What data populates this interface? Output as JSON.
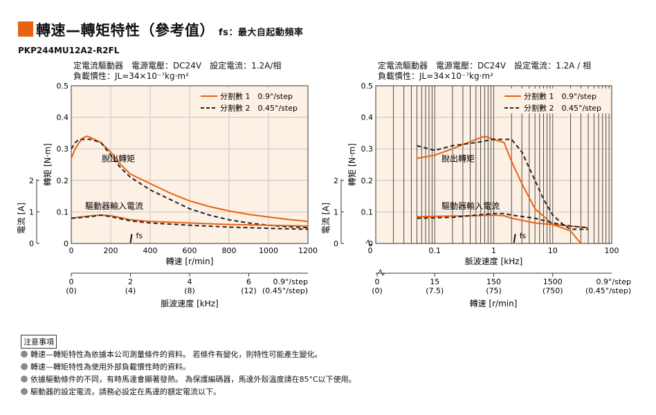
{
  "title": {
    "main": "轉速—轉矩特性（參考值）",
    "sub": "fs：最大自起動頻率"
  },
  "model": "PKP244MU12A2-R2FL",
  "conditions": {
    "line1": "定電流驅動器　電源電壓：DC24V　設定電流：1.2A/相",
    "line1_right": "定電流驅動器　電源電壓：DC24V　設定電流：1.2A / 相",
    "line2": "負載慣性：JL=34×10⁻⁷kg·m²"
  },
  "colors": {
    "accent": "#e8620f",
    "plot_bg": "#fdf0e4",
    "grid": "#bbbbbb",
    "dark": "#222222"
  },
  "chart_data": [
    {
      "type": "line",
      "xlabel": "轉速 [r/min]",
      "ylabel": "轉矩 [N·m]",
      "ylabel2": "電流 [A]",
      "xlim": [
        0,
        1200
      ],
      "ylim": [
        0,
        0.5
      ],
      "xticks": [
        "0",
        "200",
        "400",
        "600",
        "800",
        "1000",
        "1200"
      ],
      "yticks": [
        "0",
        "0.1",
        "0.2",
        "0.3",
        "0.4",
        "0.5"
      ],
      "current_ticks": [
        "0",
        "1",
        "2"
      ],
      "pulse_axis": {
        "label": "脈波速度 [kHz]",
        "ticks_full": [
          "0",
          "2",
          "4",
          "6"
        ],
        "ticks_half": [
          "(0)",
          "(4)",
          "(8)",
          "(12)"
        ],
        "end_label": "0.9°/step",
        "end_label2": "(0.45°/step)"
      },
      "annotations": {
        "pullout": "脫出轉矩",
        "current": "驅動器輸入電流",
        "fs": "fs"
      },
      "legend": {
        "placement": "top-right"
      },
      "series": [
        {
          "name": "分割數 1　0.9°/step",
          "role": "pullout",
          "style": "solid",
          "x": [
            0,
            20,
            40,
            60,
            80,
            100,
            150,
            200,
            250,
            300,
            400,
            500,
            600,
            700,
            800,
            900,
            1000,
            1100,
            1200
          ],
          "y": [
            0.27,
            0.3,
            0.32,
            0.335,
            0.34,
            0.335,
            0.32,
            0.29,
            0.25,
            0.22,
            0.19,
            0.16,
            0.135,
            0.117,
            0.103,
            0.092,
            0.084,
            0.076,
            0.07
          ]
        },
        {
          "name": "分割數 2　0.45°/step",
          "role": "pullout",
          "style": "dashed",
          "x": [
            0,
            20,
            40,
            60,
            80,
            100,
            150,
            200,
            250,
            300,
            400,
            500,
            600,
            700,
            800,
            900,
            1000,
            1100,
            1200
          ],
          "y": [
            0.3,
            0.32,
            0.33,
            0.33,
            0.33,
            0.33,
            0.32,
            0.28,
            0.24,
            0.21,
            0.17,
            0.14,
            0.11,
            0.09,
            0.075,
            0.065,
            0.058,
            0.053,
            0.05
          ]
        },
        {
          "name": "分割數 1　0.9°/step",
          "role": "current",
          "style": "solid",
          "x": [
            0,
            100,
            150,
            200,
            250,
            300,
            400,
            600,
            800,
            1000,
            1200
          ],
          "y": [
            0.08,
            0.088,
            0.09,
            0.088,
            0.082,
            0.075,
            0.07,
            0.065,
            0.06,
            0.058,
            0.055
          ]
        },
        {
          "name": "分割數 2　0.45°/step",
          "role": "current",
          "style": "dashed",
          "x": [
            0,
            100,
            150,
            200,
            250,
            300,
            400,
            600,
            800,
            1000,
            1200
          ],
          "y": [
            0.08,
            0.085,
            0.09,
            0.085,
            0.078,
            0.072,
            0.065,
            0.058,
            0.052,
            0.048,
            0.045
          ]
        }
      ],
      "fs_x": 300
    },
    {
      "type": "line",
      "log_x": true,
      "xlabel": "脈波速度 [kHz]",
      "ylabel": "轉矩 [N·m]",
      "ylabel2": "電流 [A]",
      "xlim": [
        0.01,
        100
      ],
      "ylim": [
        0,
        0.5
      ],
      "xticks": [
        "0.1",
        "1",
        "10",
        "100"
      ],
      "x0_label": "0",
      "yticks": [
        "0",
        "0.1",
        "0.2",
        "0.3",
        "0.4",
        "0.5"
      ],
      "current_ticks": [
        "0",
        "1",
        "2"
      ],
      "speed_axis": {
        "label": "轉速 [r/min]",
        "ticks_full": [
          "0",
          "15",
          "150",
          "1500"
        ],
        "ticks_half": [
          "(0)",
          "(7.5)",
          "(75)",
          "(750)"
        ],
        "end_label": "0.9°/step",
        "end_label2": "(0.45°/step)"
      },
      "annotations": {
        "pullout": "脫出轉矩",
        "current": "驅動器輸入電流",
        "fs": "fs"
      },
      "legend": {
        "placement": "top-right"
      },
      "series": [
        {
          "name": "分割數 1　0.9°/step",
          "role": "pullout",
          "style": "solid",
          "x": [
            0.05,
            0.1,
            0.2,
            0.5,
            0.7,
            1,
            1.5,
            2,
            3,
            5,
            10,
            20,
            30
          ],
          "y": [
            0.27,
            0.28,
            0.3,
            0.33,
            0.34,
            0.33,
            0.32,
            0.26,
            0.19,
            0.11,
            0.06,
            0.04,
            0.0
          ]
        },
        {
          "name": "分割數 2　0.45°/step",
          "role": "pullout",
          "style": "dashed",
          "x": [
            0.05,
            0.1,
            0.2,
            0.5,
            1,
            2,
            3,
            5,
            7,
            10,
            15,
            20,
            40
          ],
          "y": [
            0.31,
            0.295,
            0.31,
            0.32,
            0.33,
            0.33,
            0.29,
            0.2,
            0.14,
            0.09,
            0.06,
            0.045,
            0.045
          ]
        },
        {
          "name": "分割數 1　0.9°/step",
          "role": "current",
          "style": "solid",
          "x": [
            0.05,
            0.2,
            0.5,
            1,
            1.5,
            2,
            5,
            10,
            20,
            40
          ],
          "y": [
            0.085,
            0.087,
            0.088,
            0.09,
            0.088,
            0.08,
            0.065,
            0.06,
            0.055,
            0.05
          ]
        },
        {
          "name": "分割數 2　0.45°/step",
          "role": "current",
          "style": "dashed",
          "x": [
            0.05,
            0.2,
            0.5,
            1,
            1.5,
            2,
            5,
            10,
            20,
            40
          ],
          "y": [
            0.08,
            0.083,
            0.09,
            0.095,
            0.095,
            0.09,
            0.08,
            0.065,
            0.055,
            0.05
          ]
        }
      ],
      "fs_x": 2.2
    }
  ],
  "notes": {
    "heading": "注意事項",
    "items": [
      "轉速—轉矩特性為依據本公司測量條件的資料。 若條件有變化，則特性可能產生變化。",
      "轉速—轉矩特性為使用外部負載慣性時的資料。",
      "依據驅動條件的不同，有時馬達會顯著發熱。 為保護編碼器，馬達外殼溫度請在85°C以下使用。",
      "驅動器的設定電流，請務必設定在馬達的額定電流以下。"
    ]
  }
}
